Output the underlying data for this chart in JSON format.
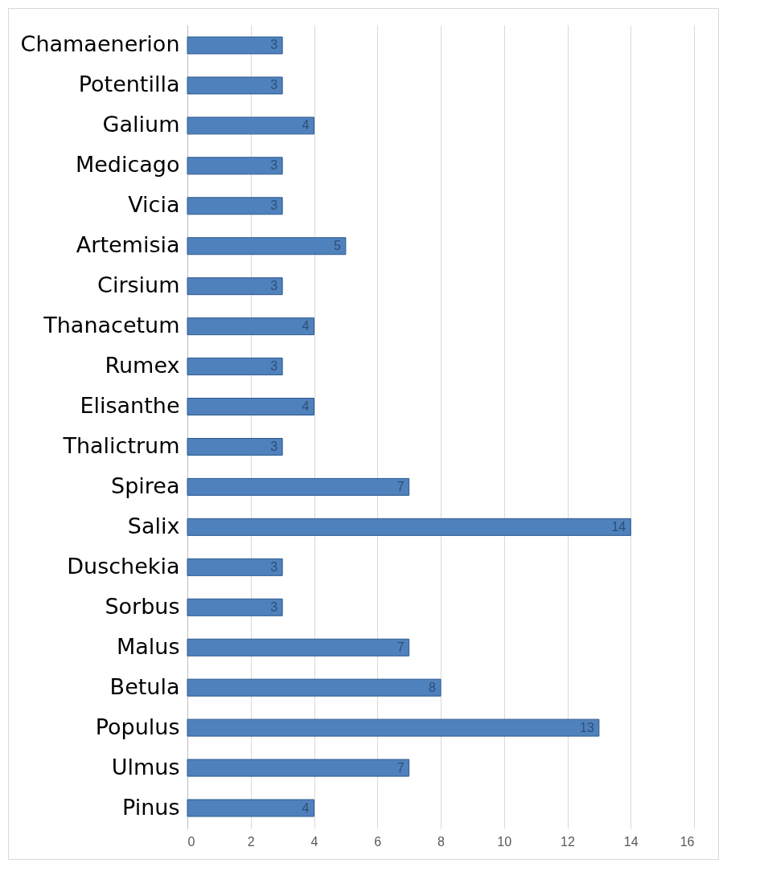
{
  "chart_data": {
    "type": "bar",
    "orientation": "horizontal",
    "categories": [
      "Chamaenerion",
      "Potentilla",
      "Galium",
      "Medicago",
      "Vicia",
      "Artemisia",
      "Cirsium",
      "Thanacetum",
      "Rumex",
      "Elisanthe",
      "Thalictrum",
      "Spirea",
      "Salix",
      "Duschekia",
      "Sorbus",
      "Malus",
      "Betula",
      "Populus",
      "Ulmus",
      "Pinus"
    ],
    "values": [
      3,
      3,
      4,
      3,
      3,
      5,
      3,
      4,
      3,
      4,
      3,
      7,
      14,
      3,
      3,
      7,
      8,
      13,
      7,
      4
    ],
    "color": "#4f81bd",
    "xlim": [
      0,
      16
    ],
    "xticks": [
      0,
      2,
      4,
      6,
      8,
      10,
      12,
      14,
      16
    ],
    "grid": "x",
    "data_labels": true
  }
}
